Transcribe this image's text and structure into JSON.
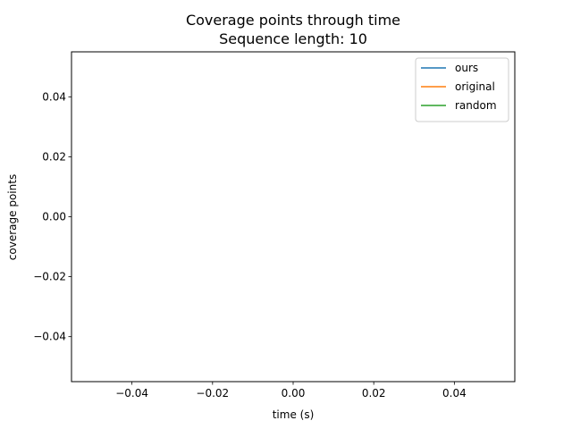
{
  "chart_data": {
    "type": "line",
    "title": "Coverage points through time",
    "subtitle": "Sequence length: 10",
    "xlabel": "time (s)",
    "ylabel": "coverage points",
    "xlim": [
      -0.055,
      0.055
    ],
    "ylim": [
      -0.055,
      0.055
    ],
    "xticks": [
      -0.04,
      -0.02,
      0.0,
      0.02,
      0.04
    ],
    "yticks": [
      -0.04,
      -0.02,
      0.0,
      0.02,
      0.04
    ],
    "xtick_labels": [
      "−0.04",
      "−0.02",
      "0.00",
      "0.02",
      "0.04"
    ],
    "ytick_labels": [
      "−0.04",
      "−0.02",
      "0.00",
      "0.02",
      "0.04"
    ],
    "grid": false,
    "legend_position": "top-right",
    "series": [
      {
        "name": "ours",
        "color": "#1f77b4",
        "x": [],
        "y": []
      },
      {
        "name": "original",
        "color": "#ff7f0e",
        "x": [],
        "y": []
      },
      {
        "name": "random",
        "color": "#2ca02c",
        "x": [],
        "y": []
      }
    ]
  }
}
